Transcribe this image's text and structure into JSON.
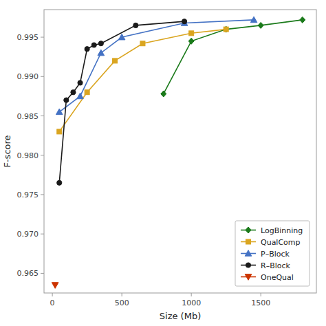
{
  "chart_data": {
    "type": "line",
    "xlabel": "Size (Mb)",
    "ylabel": "F-score",
    "xlim": [
      -60,
      1900
    ],
    "ylim": [
      0.9625,
      0.9985
    ],
    "xticks": [
      0,
      500,
      1000,
      1500
    ],
    "yticks": [
      0.965,
      {
        "value": 0.97,
        "label": "0.970"
      },
      0.975,
      {
        "value": 0.98,
        "label": "0.980"
      },
      0.985,
      {
        "value": 0.99,
        "label": "0.990"
      },
      0.995
    ],
    "grid": false,
    "legend": "lower right",
    "series": [
      {
        "name": "LogBinning",
        "color": "#1a7a1a",
        "marker": "diamond",
        "x": [
          800,
          1000,
          1250,
          1500,
          1800
        ],
        "values": [
          0.9878,
          0.9945,
          0.996,
          0.9965,
          0.9972
        ]
      },
      {
        "name": "QualComp",
        "color": "#daa520",
        "marker": "square",
        "x": [
          50,
          250,
          450,
          650,
          1000,
          1250
        ],
        "values": [
          0.983,
          0.988,
          0.992,
          0.9942,
          0.9955,
          0.996
        ]
      },
      {
        "name": "P–Block",
        "color": "#4472c4",
        "marker": "triangle-up",
        "x": [
          50,
          200,
          350,
          500,
          950,
          1450
        ],
        "values": [
          0.9855,
          0.9875,
          0.993,
          0.995,
          0.9968,
          0.9972
        ]
      },
      {
        "name": "R–Block",
        "color": "#1a1a1a",
        "marker": "circle",
        "x": [
          50,
          100,
          150,
          200,
          250,
          300,
          350,
          600,
          950
        ],
        "values": [
          0.9765,
          0.987,
          0.988,
          0.9892,
          0.9935,
          0.994,
          0.9942,
          0.9965,
          0.997
        ]
      },
      {
        "name": "OneQual",
        "color": "#cc3300",
        "marker": "triangle-down",
        "x": [
          20
        ],
        "values": [
          0.9635
        ]
      }
    ]
  }
}
